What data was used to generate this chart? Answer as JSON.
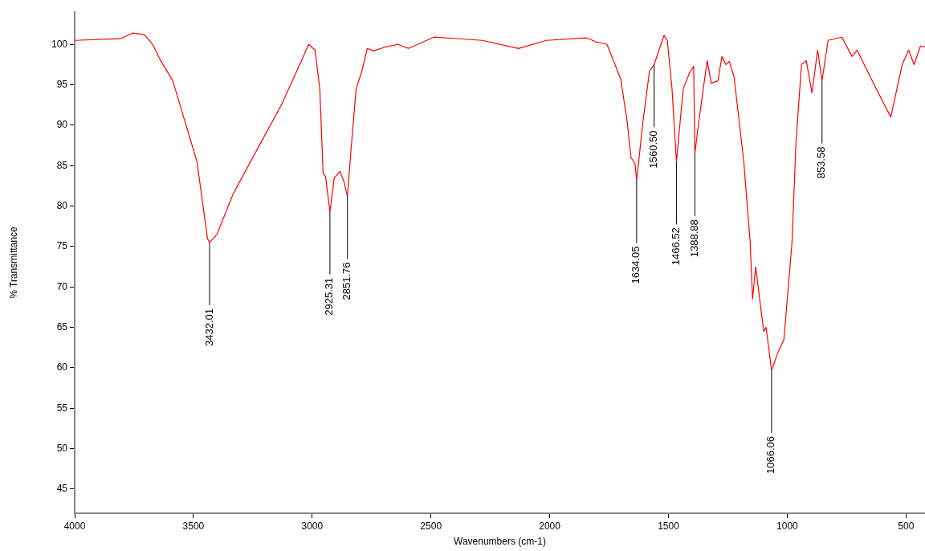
{
  "chart_data": {
    "type": "line",
    "xlabel": "Wavenumbers (cm-1)",
    "ylabel": "% Transmittance",
    "xlim": [
      4000,
      420
    ],
    "xticks": [
      4000,
      3500,
      3000,
      2500,
      2000,
      1500,
      1000,
      500
    ],
    "ylim": [
      42,
      104
    ],
    "yticks": [
      45,
      50,
      55,
      60,
      65,
      70,
      75,
      80,
      85,
      90,
      95,
      100
    ],
    "grid": false,
    "legend": false,
    "marker": "none",
    "line_style": "solid",
    "series": [
      {
        "color": "#ff0000",
        "x": [
          4000,
          3807,
          3756,
          3706,
          3672,
          3638,
          3587,
          3536,
          3485,
          3441,
          3432.01,
          3401,
          3333,
          3232,
          3130,
          3045,
          3015,
          2988,
          2968,
          2954,
          2944,
          2925.31,
          2907,
          2883,
          2866,
          2851.76,
          2835,
          2815,
          2791,
          2768,
          2741,
          2690,
          2639,
          2595,
          2487,
          2385,
          2284,
          2131,
          2013,
          1844,
          1803,
          1759,
          1725,
          1701,
          1674,
          1658,
          1641,
          1634.05,
          1607,
          1580,
          1560.5,
          1532,
          1519,
          1505,
          1485,
          1466.52,
          1438,
          1411,
          1394,
          1388.88,
          1370,
          1337,
          1320,
          1292,
          1275,
          1258,
          1244,
          1224,
          1183,
          1156,
          1146,
          1133,
          1116,
          1099,
          1089,
          1066.06,
          1038,
          1014,
          980,
          963,
          940,
          920,
          896,
          872,
          853.58,
          828,
          770,
          727,
          706,
          676,
          625,
          564,
          516,
          489,
          466,
          439,
          422
        ],
        "values": [
          100.5,
          100.7,
          101.4,
          101.2,
          100,
          98,
          95.5,
          90.5,
          85.5,
          76,
          75.5,
          76.5,
          81.5,
          87,
          92.5,
          98,
          100,
          99.3,
          94.5,
          84,
          83.7,
          79.3,
          83.5,
          84.3,
          83,
          81.2,
          87.5,
          94.5,
          96.7,
          99.5,
          99.2,
          99.7,
          100,
          99.5,
          100.9,
          100.7,
          100.5,
          99.5,
          100.5,
          100.8,
          100.3,
          100,
          97.5,
          95.7,
          90.5,
          86,
          85.3,
          83.2,
          90.5,
          96.7,
          97.5,
          100,
          101.1,
          100.5,
          94.5,
          85.5,
          94.5,
          96.5,
          97.3,
          86.5,
          91,
          98,
          95.2,
          95.5,
          98.5,
          97.5,
          97.9,
          96,
          85.5,
          75.5,
          68.5,
          72.5,
          68.5,
          64.5,
          65,
          59.7,
          62,
          63.5,
          75.5,
          88,
          97.5,
          98,
          94,
          99.3,
          95.5,
          100.5,
          100.9,
          98.5,
          99.3,
          97.5,
          94.5,
          91,
          97.5,
          99.3,
          97.5,
          99.8,
          99.7
        ]
      }
    ],
    "annotations": [
      {
        "text": "3432.01",
        "x": 3432.01,
        "y": 75.5
      },
      {
        "text": "2925.31",
        "x": 2925.31,
        "y": 79.3
      },
      {
        "text": "2851.76",
        "x": 2851.76,
        "y": 81.2
      },
      {
        "text": "1634.05",
        "x": 1634.05,
        "y": 83.2
      },
      {
        "text": "1560.50",
        "x": 1560.5,
        "y": 97.5
      },
      {
        "text": "1466.52",
        "x": 1466.52,
        "y": 85.5
      },
      {
        "text": "1388.88",
        "x": 1388.88,
        "y": 86.5
      },
      {
        "text": "1066.06",
        "x": 1066.06,
        "y": 59.7
      },
      {
        "text": "853.58",
        "x": 853.58,
        "y": 95.5
      }
    ]
  }
}
